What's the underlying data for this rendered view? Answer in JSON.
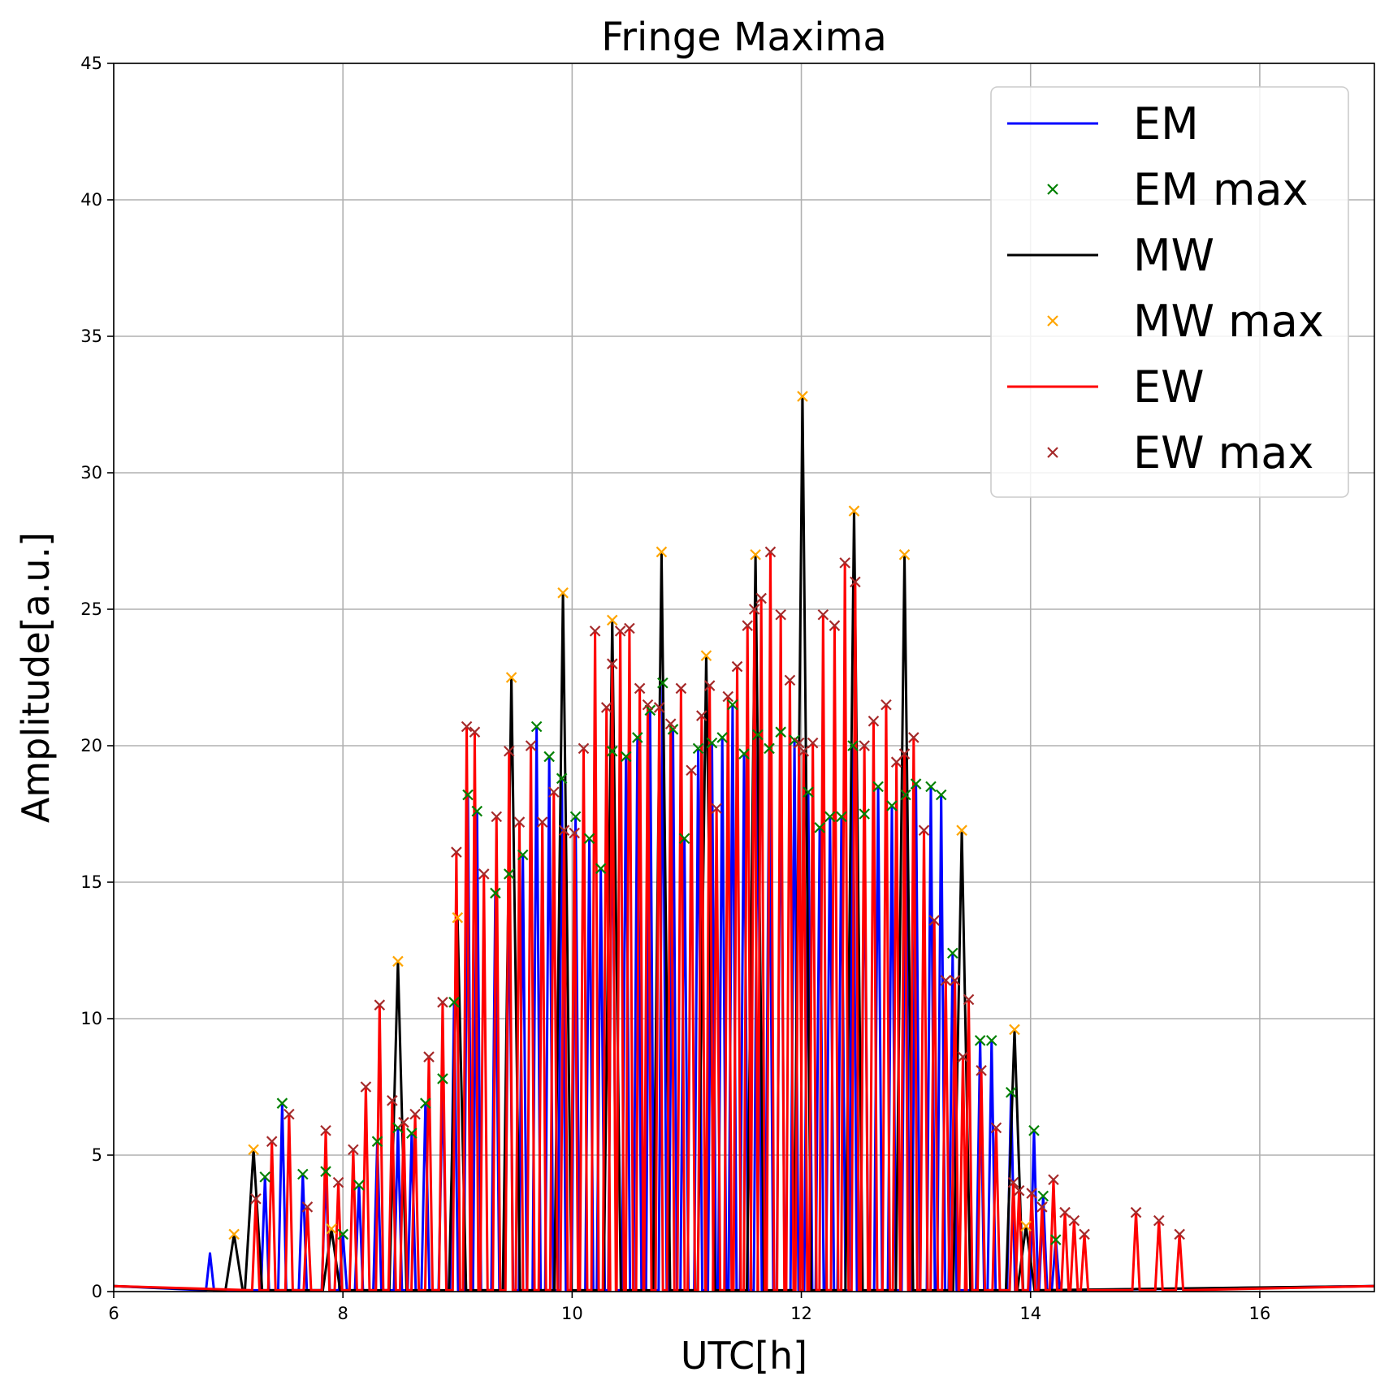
{
  "chart_data": {
    "type": "line",
    "title": "Fringe Maxima",
    "xlabel": "UTC[h]",
    "ylabel": "Amplitude[a.u.]",
    "xlim": [
      6,
      17
    ],
    "ylim": [
      0,
      45
    ],
    "xticks": [
      6,
      8,
      10,
      12,
      14,
      16
    ],
    "yticks": [
      0,
      5,
      10,
      15,
      20,
      25,
      30,
      35,
      40,
      45
    ],
    "grid": true,
    "legend_position": "top-right",
    "colors": {
      "EM": "#0000ff",
      "EM max": "#008000",
      "MW": "#000000",
      "MW max": "#ffa500",
      "EW": "#ff0000",
      "EW max": "#a52a2a"
    },
    "legend": [
      {
        "label": "EM",
        "kind": "line",
        "color": "#0000ff"
      },
      {
        "label": "EM max",
        "kind": "marker",
        "color": "#008000"
      },
      {
        "label": "MW",
        "kind": "line",
        "color": "#000000"
      },
      {
        "label": "MW max",
        "kind": "marker",
        "color": "#ffa500"
      },
      {
        "label": "EW",
        "kind": "line",
        "color": "#ff0000"
      },
      {
        "label": "EW max",
        "kind": "marker",
        "color": "#a52a2a"
      }
    ],
    "series": [
      {
        "name": "EM max",
        "kind": "marker",
        "x": [
          7.32,
          7.47,
          7.65,
          7.85,
          8.0,
          8.14,
          8.3,
          8.48,
          8.6,
          8.72,
          8.87,
          8.97,
          9.09,
          9.17,
          9.33,
          9.45,
          9.57,
          9.69,
          9.8,
          9.91,
          10.03,
          10.15,
          10.25,
          10.35,
          10.47,
          10.57,
          10.68,
          10.79,
          10.88,
          10.98,
          11.1,
          11.22,
          11.31,
          11.4,
          11.5,
          11.62,
          11.72,
          11.82,
          11.94,
          12.06,
          12.16,
          12.25,
          12.35,
          12.45,
          12.55,
          12.67,
          12.79,
          12.91,
          13.0,
          13.13,
          13.22,
          13.32,
          13.56,
          13.66,
          13.83,
          14.03,
          14.11,
          14.22
        ],
        "y": [
          4.2,
          6.9,
          4.3,
          4.4,
          2.1,
          3.9,
          5.5,
          6.0,
          5.8,
          6.9,
          7.8,
          10.6,
          18.2,
          17.6,
          14.6,
          15.3,
          16.0,
          20.7,
          19.6,
          18.8,
          17.4,
          16.6,
          15.5,
          19.8,
          19.6,
          20.3,
          21.3,
          22.3,
          20.6,
          16.6,
          19.9,
          20.1,
          20.3,
          21.5,
          19.7,
          20.4,
          19.9,
          20.5,
          20.2,
          18.3,
          17.0,
          17.4,
          17.4,
          20.0,
          17.5,
          18.5,
          17.8,
          18.2,
          18.6,
          18.5,
          18.2,
          12.4,
          9.2,
          9.2,
          7.3,
          5.9,
          3.5,
          1.9
        ]
      },
      {
        "name": "MW max",
        "kind": "marker",
        "x": [
          7.05,
          7.22,
          7.9,
          8.48,
          9.0,
          9.47,
          9.92,
          10.35,
          10.78,
          11.17,
          11.6,
          12.01,
          12.46,
          12.9,
          13.4,
          13.86,
          13.96
        ],
        "y": [
          2.1,
          5.2,
          2.3,
          12.1,
          13.7,
          22.5,
          25.6,
          24.6,
          27.1,
          23.3,
          27.0,
          32.8,
          28.6,
          27.0,
          16.9,
          9.6,
          2.4
        ]
      },
      {
        "name": "EW max",
        "kind": "marker",
        "x": [
          7.24,
          7.38,
          7.53,
          7.69,
          7.85,
          7.96,
          8.09,
          8.2,
          8.32,
          8.43,
          8.53,
          8.63,
          8.75,
          8.87,
          8.99,
          9.08,
          9.15,
          9.23,
          9.34,
          9.45,
          9.54,
          9.64,
          9.74,
          9.84,
          9.93,
          10.02,
          10.1,
          10.2,
          10.3,
          10.35,
          10.42,
          10.5,
          10.59,
          10.66,
          10.76,
          10.86,
          10.95,
          11.04,
          11.13,
          11.2,
          11.26,
          11.36,
          11.44,
          11.53,
          11.59,
          11.65,
          11.73,
          11.82,
          11.9,
          11.98,
          12.02,
          12.1,
          12.19,
          12.29,
          12.38,
          12.47,
          12.55,
          12.63,
          12.74,
          12.83,
          12.9,
          12.98,
          13.07,
          13.16,
          13.26,
          13.34,
          13.41,
          13.46,
          13.57,
          13.7,
          13.85,
          13.9,
          14.01,
          14.1,
          14.2,
          14.3,
          14.38,
          14.47,
          14.92,
          15.12,
          15.3
        ],
        "y": [
          3.4,
          5.5,
          6.5,
          3.1,
          5.9,
          4.0,
          5.2,
          7.5,
          10.5,
          7.0,
          6.2,
          6.5,
          8.6,
          10.6,
          16.1,
          20.7,
          20.5,
          15.3,
          17.4,
          19.8,
          17.2,
          20.0,
          17.2,
          18.3,
          16.9,
          16.8,
          19.9,
          24.2,
          21.4,
          23.0,
          24.2,
          24.3,
          22.1,
          21.5,
          21.4,
          20.8,
          22.1,
          19.1,
          21.1,
          22.2,
          17.7,
          21.8,
          22.9,
          24.4,
          25.0,
          25.4,
          27.1,
          24.8,
          22.4,
          20.1,
          19.8,
          20.1,
          24.8,
          24.4,
          26.7,
          26.0,
          20.0,
          20.9,
          21.5,
          19.4,
          19.7,
          20.3,
          16.9,
          13.6,
          11.4,
          11.4,
          8.6,
          10.7,
          8.1,
          6.0,
          4.0,
          3.7,
          3.6,
          3.1,
          4.1,
          2.9,
          2.6,
          2.1,
          2.9,
          2.6,
          2.1
        ],
        "y_note": ""
      }
    ]
  }
}
